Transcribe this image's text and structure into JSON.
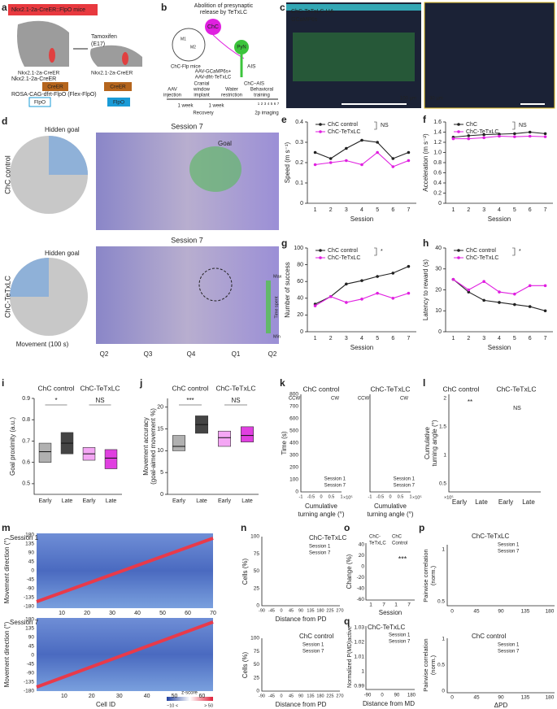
{
  "labels": [
    "a",
    "b",
    "c",
    "d",
    "e",
    "f",
    "g",
    "h",
    "i",
    "j",
    "k",
    "l",
    "m",
    "n",
    "o",
    "p",
    "q"
  ],
  "a": {
    "title": "Nkx2.1-2a-CreER::FlpO mice",
    "tamoxifen": "Tamoxifen",
    "e17": "(E17)",
    "brain1": "Nkx2.1-2a-CreER",
    "brain2": "Nkx2.1-2a-CreER",
    "line1": "Nkx2.1-2a-CreER",
    "creer": [
      "CreER",
      "CreER"
    ],
    "line2": "ROSA-CAG-dfrt-FlpO (Flex-FlpO)",
    "flpo": [
      "FlpO",
      "FlpO"
    ]
  },
  "b": {
    "title": [
      "Abolition of presynaptic",
      "release by TeTxLC"
    ],
    "chc": "ChC",
    "pyn": "PyN",
    "ais": "AIS",
    "aav": [
      "AAV-GCaMP6s+",
      "AAV-dfrt-TeTxLC"
    ],
    "chc_ais": "ChC–AIS",
    "mice": "ChC-Flp mice",
    "m1": "M1",
    "m2": "M2",
    "steps": [
      [
        "AAV",
        "injection"
      ],
      [
        "Cranial",
        "window",
        "implant"
      ],
      [
        "Water",
        "restriction"
      ],
      [
        "Behavioral",
        "training"
      ]
    ],
    "weeks": [
      "1 week",
      "1 week"
    ],
    "recovery": "Recovery",
    "days": [
      "1",
      "2",
      "3",
      "4",
      "5",
      "6",
      "7"
    ],
    "imaging": "2p imaging"
  },
  "c": {
    "legend": [
      "ChC-TeTxLC-HA",
      "GCaMP6s"
    ],
    "scale": [
      "100 µm",
      "30 µm"
    ]
  },
  "d": {
    "session": [
      "Session 7",
      "Session 7"
    ],
    "hidden_goal": [
      "Hidden goal",
      "Hidden goal"
    ],
    "goal": "Goal",
    "rows": [
      "ChC control",
      "ChC-TeTxLC"
    ],
    "movement": "Movement (100 s)",
    "quadrants": [
      "Q2",
      "Q3",
      "Q4",
      "Q1",
      "Q2"
    ],
    "colorbar": [
      "Max",
      "Time spent",
      "Min"
    ]
  },
  "chart_data": [
    {
      "type": "line",
      "ylabel": "Speed (m s⁻¹)",
      "xlabel": "Session",
      "categories": [
        "1",
        "2",
        "3",
        "4",
        "5",
        "6",
        "7"
      ],
      "ylim": [
        0,
        0.4
      ],
      "yticks": [
        0,
        0.1,
        0.2,
        0.3,
        0.4
      ],
      "annotation": "NS",
      "series": [
        {
          "name": "ChC control",
          "color": "#222222",
          "values": [
            0.25,
            0.22,
            0.27,
            0.31,
            0.3,
            0.22,
            0.25
          ]
        },
        {
          "name": "ChC-TeTxLC",
          "color": "#e020e0",
          "values": [
            0.19,
            0.2,
            0.21,
            0.19,
            0.25,
            0.18,
            0.21
          ]
        }
      ]
    },
    {
      "type": "line",
      "ylabel": "Acceleration (m s⁻²)",
      "xlabel": "Session",
      "categories": [
        "1",
        "2",
        "3",
        "4",
        "5",
        "6",
        "7"
      ],
      "ylim": [
        0,
        1.6
      ],
      "yticks": [
        0,
        0.2,
        0.4,
        0.6,
        0.8,
        {
          "value": 1,
          "label": "1.0"
        },
        1.2,
        1.4,
        1.6
      ],
      "annotation": "NS",
      "series": [
        {
          "name": "ChC",
          "color": "#222222",
          "values": [
            1.3,
            1.33,
            1.35,
            1.36,
            1.37,
            1.4,
            1.37
          ]
        },
        {
          "name": "ChC-TeTxLC",
          "color": "#e020e0",
          "values": [
            1.27,
            1.27,
            1.29,
            1.32,
            1.31,
            1.32,
            1.31
          ]
        }
      ]
    },
    {
      "type": "line",
      "ylabel": "Number of success",
      "xlabel": "Session",
      "categories": [
        "1",
        "2",
        "3",
        "4",
        "5",
        "6",
        "7"
      ],
      "ylim": [
        0,
        100
      ],
      "yticks": [
        0,
        20,
        40,
        60,
        80,
        100
      ],
      "annotation": "*",
      "series": [
        {
          "name": "ChC control",
          "color": "#222222",
          "values": [
            33,
            42,
            57,
            61,
            66,
            70,
            78
          ]
        },
        {
          "name": "ChC-TeTxLC",
          "color": "#e020e0",
          "values": [
            31,
            42,
            35,
            39,
            46,
            40,
            46
          ]
        }
      ]
    },
    {
      "type": "line",
      "ylabel": "Latency to reward (s)",
      "xlabel": "Session",
      "categories": [
        "1",
        "2",
        "3",
        "4",
        "5",
        "6",
        "7"
      ],
      "ylim": [
        0,
        40
      ],
      "yticks": [
        0,
        10,
        20,
        30,
        40
      ],
      "annotation": "*",
      "series": [
        {
          "name": "ChC control",
          "color": "#222222",
          "values": [
            25,
            19,
            15,
            14,
            13,
            12,
            10
          ]
        },
        {
          "name": "ChC-TeTxLC",
          "color": "#e020e0",
          "values": [
            25,
            20,
            24,
            19,
            18,
            22,
            22
          ]
        }
      ]
    },
    {
      "type": "box",
      "titles": [
        "ChC control",
        "ChC-TeTxLC"
      ],
      "ylabel": "Goal proximity (a.u.)",
      "categories": [
        "Early",
        "Late",
        "Early",
        "Late"
      ],
      "colors": [
        "#b0b0b0",
        "#444444",
        "#f4a6f4",
        "#e040e0"
      ],
      "ylim": [
        0.45,
        0.9
      ],
      "yticks": [
        0.5,
        0.6,
        0.7,
        0.8,
        0.9
      ],
      "annotations": [
        "*",
        "NS"
      ],
      "q1": [
        0.6,
        0.64,
        0.61,
        0.57
      ],
      "median": [
        0.65,
        0.69,
        0.64,
        0.62
      ],
      "q3": [
        0.69,
        0.74,
        0.67,
        0.66
      ]
    },
    {
      "type": "box",
      "titles": [
        "ChC control",
        "ChC-TeTxLC"
      ],
      "ylabel": "Movement accuracy",
      "ylabel2": "(goal-aimed movement %)",
      "categories": [
        "Early",
        "Late",
        "Early",
        "Late"
      ],
      "colors": [
        "#b0b0b0",
        "#444444",
        "#f4a6f4",
        "#e040e0"
      ],
      "ylim": [
        0,
        22
      ],
      "yticks": [
        0,
        5,
        10,
        15,
        20
      ],
      "annotations": [
        "***",
        "NS"
      ],
      "q1": [
        10,
        14,
        11,
        12
      ],
      "median": [
        11,
        16,
        13,
        13.5
      ],
      "q3": [
        13.5,
        18,
        14.5,
        15.5
      ]
    }
  ],
  "k": {
    "groups": [
      "ChC control",
      "ChC-TeTxLC"
    ],
    "dirs": [
      "CCW",
      "CW",
      "CCW",
      "CW"
    ],
    "ylabel": "Time (s)",
    "yticks": [
      0,
      100,
      200,
      300,
      400,
      500,
      600,
      700,
      800
    ],
    "xticks": [
      -1,
      -0.5,
      0,
      0.5,
      1
    ],
    "exp": "×10⁵",
    "xlabel": [
      "Cumulative",
      "turning angle (°)"
    ],
    "legend": [
      "Session 1",
      "Session 7"
    ]
  },
  "l": {
    "groups": [
      "ChC control",
      "ChC-TeTxLC"
    ],
    "ylabel": [
      "Cumulative",
      "turning angle (°)"
    ],
    "yticks": [
      0.5,
      1,
      1.5,
      2
    ],
    "exp": "×10⁵",
    "cats": [
      "Early",
      "Late",
      "Early",
      "Late"
    ],
    "sig": [
      "**",
      "NS"
    ]
  },
  "m": {
    "sessions": [
      "Session 1",
      "Session 7"
    ],
    "ylabel": "Movement direction (°)",
    "yticks": [
      180,
      135,
      90,
      45,
      0,
      -45,
      -90,
      -135,
      -180
    ],
    "xticks1": [
      10,
      20,
      30,
      40,
      50,
      60,
      70
    ],
    "xticks2": [
      10,
      20,
      30,
      40,
      50,
      60
    ],
    "xlabel": "Cell ID",
    "cbar_title": "z-score",
    "cbar": [
      "−10 <",
      "> 50"
    ]
  },
  "n": {
    "groups": [
      "ChC-TeTxLC",
      "ChC control"
    ],
    "legend": [
      "Session 1",
      "Session 7"
    ],
    "ylabel": "Cells (%)",
    "yticks": [
      0,
      25,
      50,
      75,
      100
    ],
    "xticks": [
      -90,
      -45,
      0,
      45,
      90,
      135,
      180,
      225,
      270
    ],
    "xlabel": "Distance from PD"
  },
  "o": {
    "groups": [
      "ChC-",
      "TeTxLC",
      "ChC",
      "Control"
    ],
    "ylabel": "Change (%)",
    "yticks": [
      40,
      20,
      0,
      -20,
      -40,
      -60
    ],
    "xticks": [
      "1",
      "7",
      "1",
      "7"
    ],
    "xlabel": "Session",
    "sig": "***"
  },
  "p": {
    "groups": [
      "ChC-TeTxLC",
      "ChC control"
    ],
    "legend": [
      "Session 1",
      "Session 7"
    ],
    "ylabel": [
      "Pairwise correlation",
      "(norm.)"
    ],
    "yticks_top": [
      0.5,
      1
    ],
    "yticks_bottom": [
      0,
      0.5,
      1
    ],
    "xticks": [
      0,
      45,
      90,
      135,
      180
    ],
    "xlabel": "ΔPD"
  },
  "q": {
    "group": "ChC-TeTxLC",
    "legend": [
      "Session 1",
      "Session 7"
    ],
    "ylabel": "Normalized P(MD)active",
    "yticks": [
      1.03,
      1.02,
      1.01,
      1,
      0.99
    ],
    "xticks": [
      -90,
      0,
      90,
      180
    ],
    "xlabel": "Distance from MD"
  }
}
